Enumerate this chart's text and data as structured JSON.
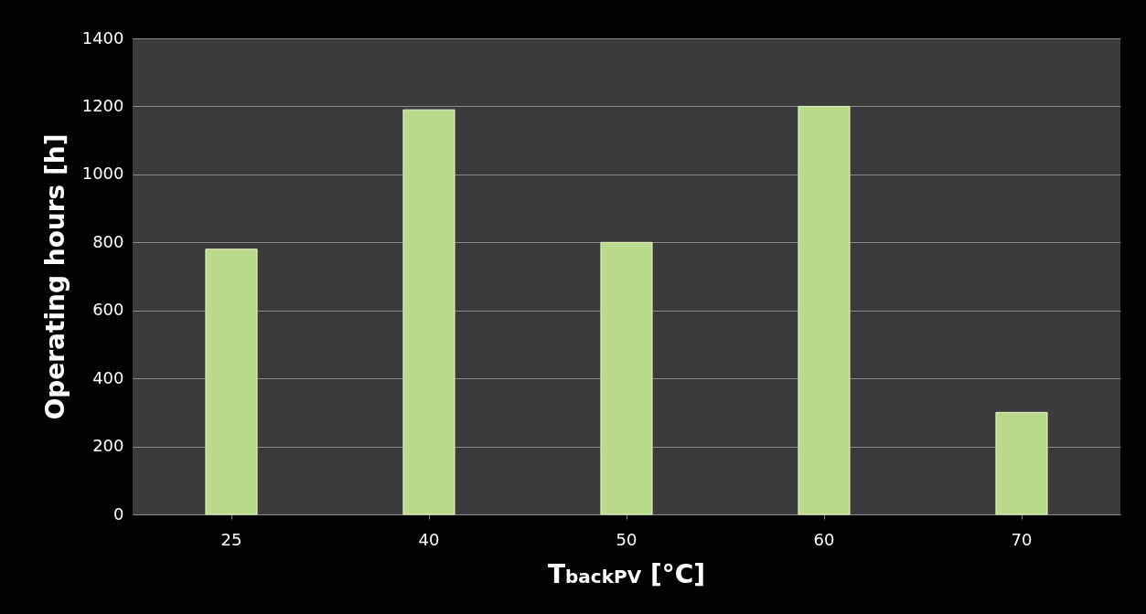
{
  "chart_data": {
    "type": "bar",
    "xlabel": "T$_{backPV}$ [°C]",
    "ylabel": "Operating hours [h]",
    "categories": [
      "25",
      "40",
      "50",
      "60",
      "70"
    ],
    "values": [
      780,
      1190,
      800,
      1200,
      300
    ],
    "color": "#b9d98c",
    "ylim": [
      0,
      1400
    ],
    "yticks": [
      0,
      200,
      400,
      600,
      800,
      1000,
      1200,
      1400
    ],
    "grid": "y"
  }
}
